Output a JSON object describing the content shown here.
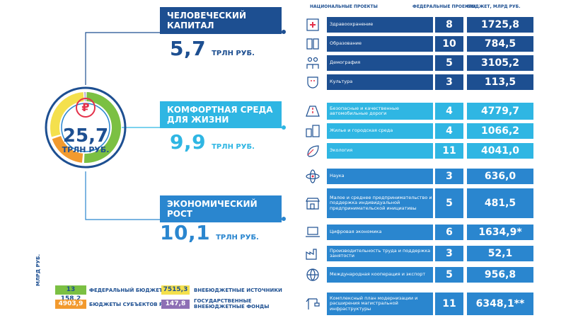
{
  "chart_data": {
    "type": "table",
    "total": {
      "value": "25,7",
      "unit": "ТРЛН РУБ."
    },
    "categories": [
      {
        "title": "ЧЕЛОВЕЧЕСКИЙ КАПИТАЛ",
        "value": "5,7",
        "unit": "ТРЛН РУБ.",
        "color": "#1d4f91"
      },
      {
        "title": "КОМФОРТНАЯ СРЕДА ДЛЯ ЖИЗНИ",
        "value": "9,9",
        "unit": "ТРЛН РУБ.",
        "color": "#2fb6e3"
      },
      {
        "title": "ЭКОНОМИЧЕСКИЙ РОСТ",
        "value": "10,1",
        "unit": "ТРЛН РУБ.",
        "color": "#2a86cf"
      }
    ],
    "table_headers": {
      "projects": "НАЦИОНАЛЬНЫЕ ПРОЕКТЫ",
      "federal": "ФЕДЕРАЛЬНЫЕ ПРОЕКТЫ",
      "budget": "БЮДЖЕТ, МЛРД РУБ."
    },
    "rows": [
      {
        "name": "Здравоохранение",
        "count": "8",
        "budget": "1725,8",
        "icon": "medical-cross-icon"
      },
      {
        "name": "Образование",
        "count": "10",
        "budget": "784,5",
        "icon": "book-icon"
      },
      {
        "name": "Демография",
        "count": "5",
        "budget": "3105,2",
        "icon": "family-icon"
      },
      {
        "name": "Культура",
        "count": "3",
        "budget": "113,5",
        "icon": "theater-icon"
      },
      {
        "name": "Безопасные и качественные автомобильные дороги",
        "count": "4",
        "budget": "4779,7",
        "icon": "road-icon"
      },
      {
        "name": "Жилье и городская среда",
        "count": "4",
        "budget": "1066,2",
        "icon": "buildings-icon"
      },
      {
        "name": "Экология",
        "count": "11",
        "budget": "4041,0",
        "icon": "leaf-icon"
      },
      {
        "name": "Наука",
        "count": "3",
        "budget": "636,0",
        "icon": "atom-icon"
      },
      {
        "name": "Малое и среднее предпринимательство и поддержка индивидуальной предпринимательской инициативы",
        "count": "5",
        "budget": "481,5",
        "icon": "shop-icon"
      },
      {
        "name": "Цифровая экономика",
        "count": "6",
        "budget": "1634,9*",
        "icon": "laptop-icon"
      },
      {
        "name": "Производительность труда и поддержка занятости",
        "count": "3",
        "budget": "52,1",
        "icon": "factory-icon"
      },
      {
        "name": "Международная кооперация и экспорт",
        "count": "5",
        "budget": "956,8",
        "icon": "globe-icon"
      },
      {
        "name": "Комплексный план модернизации и расширения магистральной инфраструктуры",
        "count": "11",
        "budget": "6348,1**",
        "icon": "crane-icon"
      }
    ],
    "legend_unit": "МЛРД РУБ.",
    "legend": [
      {
        "value": "13 158,2",
        "label": "ФЕДЕРАЛЬНЫЙ БЮДЖЕТ",
        "color": "#7bc043"
      },
      {
        "value": "4903,9",
        "label": "БЮДЖЕТЫ СУБЪЕКТОВ РФ",
        "color": "#f29a2e"
      },
      {
        "value": "7515,3",
        "label": "ВНЕБЮДЖЕТНЫЕ ИСТОЧНИКИ",
        "color": "#f4e04d"
      },
      {
        "value": "147,8",
        "label": "ГОСУДАРСТВЕННЫЕ ВНЕБЮДЖЕТНЫЕ ФОНДЫ",
        "color": "#8e6fb5"
      }
    ]
  },
  "colors": {
    "dark_blue": "#1d4f91",
    "light_blue": "#2fb6e3",
    "mid_blue": "#2a86cf",
    "red_accent": "#e4314a"
  },
  "rouble_symbol": "₽"
}
